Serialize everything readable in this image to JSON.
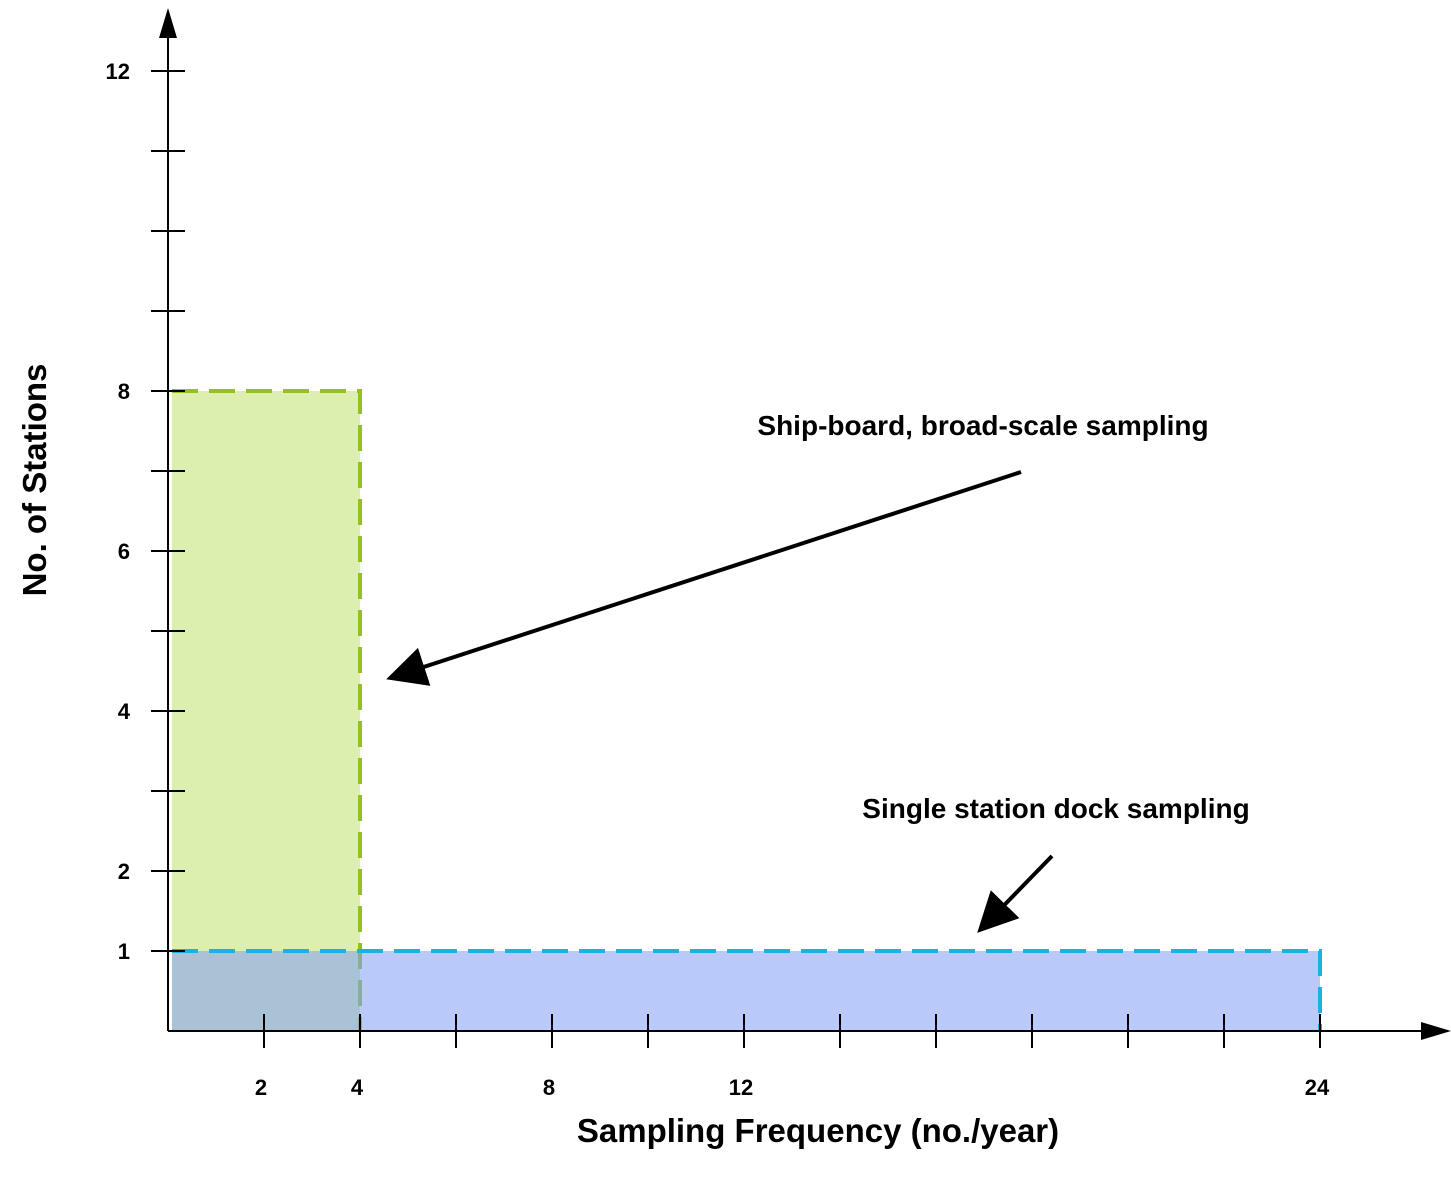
{
  "chart_data": {
    "type": "area",
    "xlabel": "Sampling Frequency (no./year)",
    "ylabel": "No. of Stations",
    "x_axis": {
      "range": [
        0,
        24
      ],
      "ticks": [
        2,
        4,
        6,
        8,
        10,
        12,
        14,
        16,
        18,
        20,
        22,
        24
      ],
      "tick_labels": [
        {
          "value": 2,
          "label": "2"
        },
        {
          "value": 4,
          "label": "4"
        },
        {
          "value": 8,
          "label": "8"
        },
        {
          "value": 12,
          "label": "12"
        },
        {
          "value": 24,
          "label": "24"
        }
      ]
    },
    "y_axis": {
      "range": [
        0,
        12
      ],
      "ticks": [
        1,
        2,
        3,
        4,
        5,
        6,
        7,
        8,
        9,
        10,
        11,
        12
      ],
      "tick_labels": [
        {
          "value": 1,
          "label": "1"
        },
        {
          "value": 2,
          "label": "2"
        },
        {
          "value": 4,
          "label": "4"
        },
        {
          "value": 6,
          "label": "6"
        },
        {
          "value": 8,
          "label": "8"
        },
        {
          "value": 12,
          "label": "12"
        }
      ]
    },
    "regions": [
      {
        "x": [
          0,
          4
        ],
        "y": [
          0,
          8
        ],
        "fill": "#c6e47a",
        "fill_opacity": 0.6,
        "border": "#94c11f",
        "border_style": "dashed"
      },
      {
        "x": [
          0,
          24
        ],
        "y": [
          0,
          1
        ],
        "fill": "#7f9cf5",
        "fill_opacity": 0.55,
        "border": "#1ab0e8",
        "border_style": "dashed"
      }
    ],
    "annotations": [
      {
        "text": "Ship-board, broad-scale sampling",
        "points_to": {
          "x": 4.5,
          "y": 4.4
        }
      },
      {
        "text": "Single station dock sampling",
        "points_to": {
          "x": 16.8,
          "y": 1.2
        }
      }
    ],
    "grid": false,
    "legend": "none"
  }
}
